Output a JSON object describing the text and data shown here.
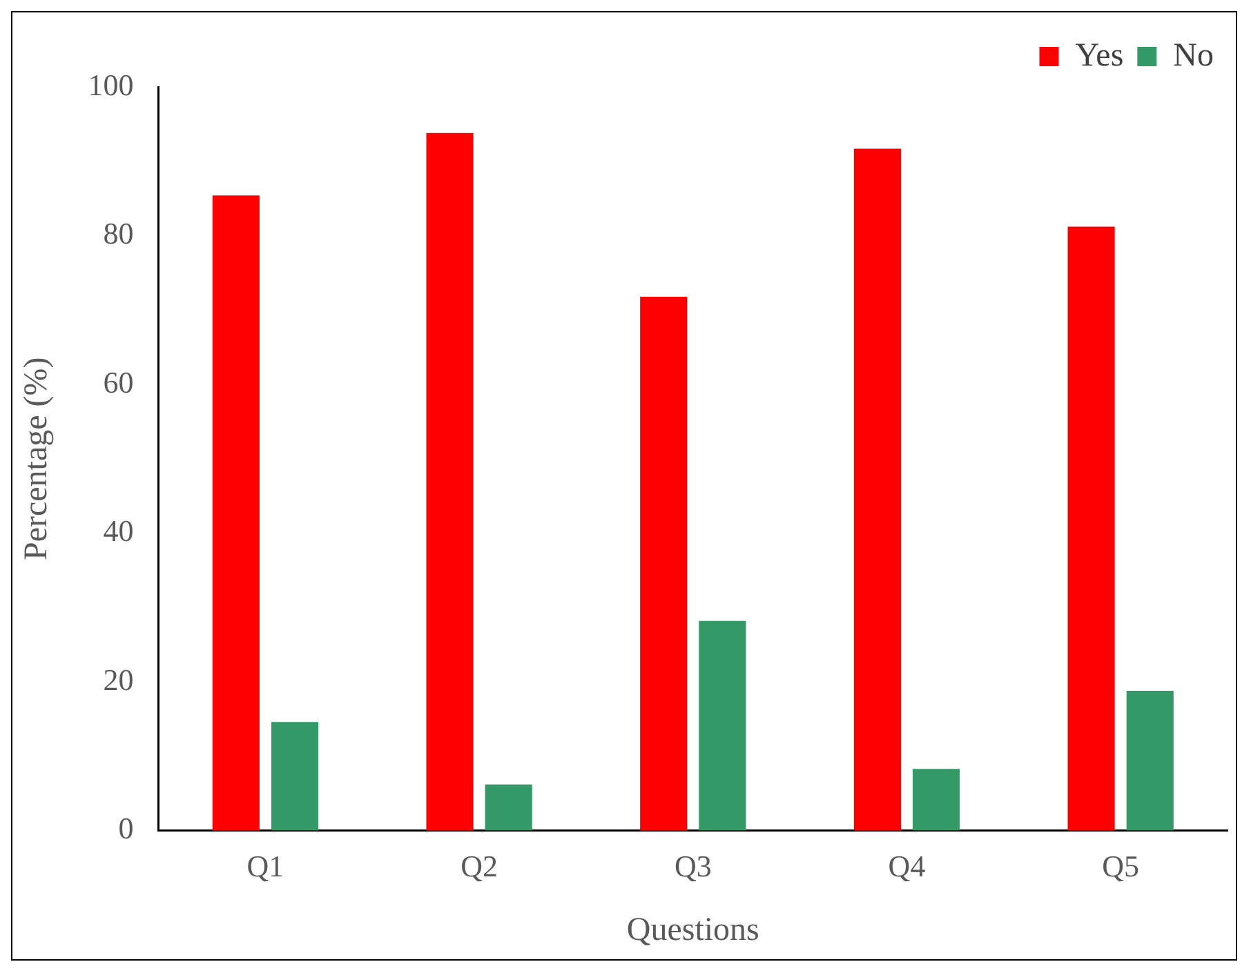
{
  "chart_data": {
    "type": "bar",
    "xlabel": "Questions",
    "ylabel": "Percentage (%)",
    "categories": [
      "Q1",
      "Q2",
      "Q3",
      "Q4",
      "Q5"
    ],
    "series": [
      {
        "name": "Yes",
        "color": "#ff0000",
        "values": [
          85.4,
          93.8,
          71.8,
          91.7,
          81.2
        ]
      },
      {
        "name": "No",
        "color": "#339966",
        "values": [
          14.6,
          6.2,
          28.2,
          8.3,
          18.8
        ]
      }
    ],
    "ylim": [
      0,
      100
    ],
    "yticks": [
      0,
      20,
      40,
      60,
      80,
      100
    ],
    "grid": false,
    "legend": "top right"
  }
}
